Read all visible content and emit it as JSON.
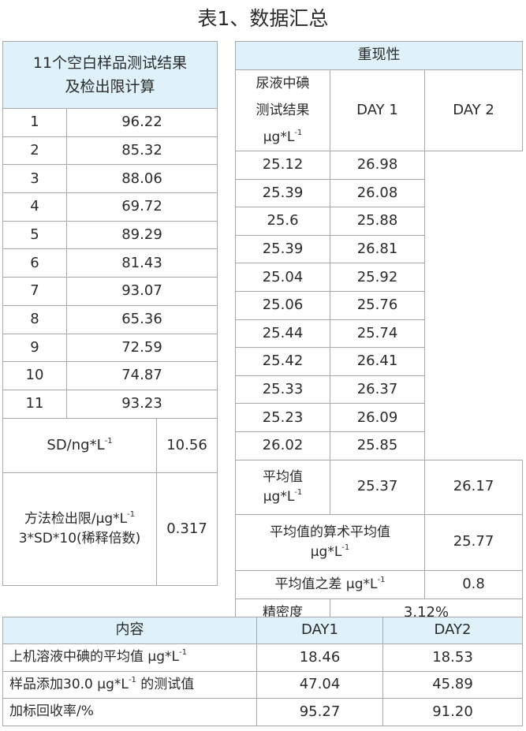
{
  "title": "表1、数据汇总",
  "left": {
    "header_line1": "11个空白样品测试结果",
    "header_line2": "及检出限计算",
    "rows": [
      [
        "1",
        "96.22"
      ],
      [
        "2",
        "85.32"
      ],
      [
        "3",
        "88.06"
      ],
      [
        "4",
        "69.72"
      ],
      [
        "5",
        "89.29"
      ],
      [
        "6",
        "81.43"
      ],
      [
        "7",
        "93.07"
      ],
      [
        "8",
        "65.36"
      ],
      [
        "9",
        "72.59"
      ],
      [
        "10",
        "74.87"
      ],
      [
        "11",
        "93.23"
      ]
    ],
    "sd_label": "SD/ng*L",
    "sd_sup": "-1",
    "sd_value": "10.56",
    "mdl_label1": "方法检出限/μg*L",
    "mdl_sup": "-1",
    "mdl_label2": "3*SD*10(稀释倍数)",
    "mdl_value": "0.317"
  },
  "right": {
    "header": "重现性",
    "day1": "DAY 1",
    "day2": "DAY 2",
    "side_label1": "尿液中碘",
    "side_label2": "测试结果",
    "side_unit": "μg*L",
    "unit_sup": "-1",
    "rows": [
      [
        "25.12",
        "26.98"
      ],
      [
        "25.39",
        "26.08"
      ],
      [
        "25.6",
        "25.88"
      ],
      [
        "25.39",
        "26.81"
      ],
      [
        "25.04",
        "25.92"
      ],
      [
        "25.06",
        "25.76"
      ],
      [
        "25.44",
        "25.74"
      ],
      [
        "25.42",
        "26.41"
      ],
      [
        "25.33",
        "26.37"
      ],
      [
        "25.23",
        "26.09"
      ],
      [
        "26.02",
        "25.85"
      ]
    ],
    "avg_label": "平均值",
    "avg_unit": "μg*L",
    "avg_day1": "25.37",
    "avg_day2": "26.17",
    "mean_label": "平均值的算术平均值",
    "mean_unit": "μg*L",
    "mean_value": "25.77",
    "diff_label": "平均值之差 μg*L",
    "diff_value": "0.8",
    "precision_label": "精密度",
    "precision_value": "3.12%"
  },
  "bottom": {
    "headers": [
      "内容",
      "DAY1",
      "DAY2"
    ],
    "rows": [
      {
        "label": "上机溶液中碘的平均值 μg*L",
        "sup": "-1",
        "suffix": "",
        "d1": "18.46",
        "d2": "18.53"
      },
      {
        "label": "样品添加30.0 μg*L",
        "sup": "-1",
        "suffix": " 的测试值",
        "d1": "47.04",
        "d2": "45.89"
      },
      {
        "label": "加标回收率/%",
        "sup": "",
        "suffix": "",
        "d1": "95.27",
        "d2": "91.20"
      }
    ]
  }
}
